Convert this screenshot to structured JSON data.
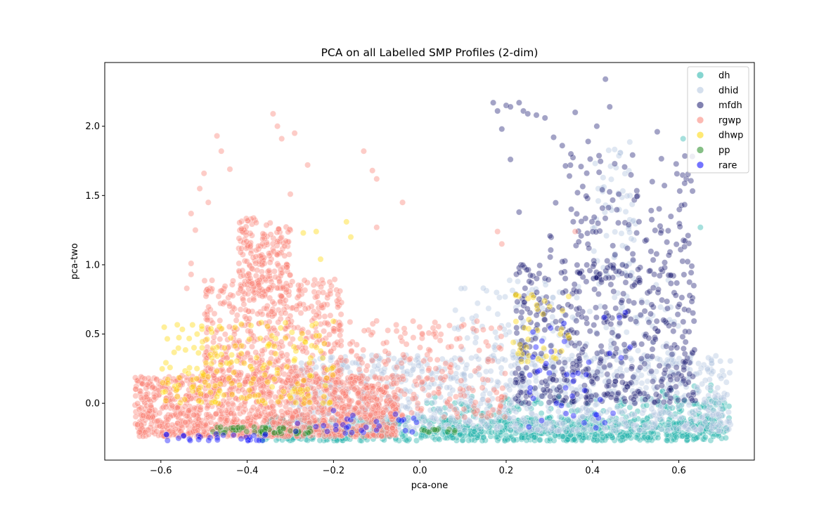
{
  "chart_data": {
    "type": "scatter",
    "title": "PCA on all Labelled SMP Profiles (2-dim)",
    "xlabel": "pca-one",
    "ylabel": "pca-two",
    "xlim": [
      -0.73,
      0.775
    ],
    "ylim": [
      -0.41,
      2.46
    ],
    "xticks": [
      -0.6,
      -0.4,
      -0.2,
      0.0,
      0.2,
      0.4,
      0.6
    ],
    "xtick_labels": [
      "−0.6",
      "−0.4",
      "−0.2",
      "0.0",
      "0.2",
      "0.4",
      "0.6"
    ],
    "yticks": [
      0.0,
      0.5,
      1.0,
      1.5,
      2.0
    ],
    "ytick_labels": [
      "0.0",
      "0.5",
      "1.0",
      "1.5",
      "2.0"
    ],
    "grid": false,
    "legend_position": "top-right",
    "series": [
      {
        "name": "dh",
        "color": "#20b2aa",
        "clusters": [
          {
            "x": [
              -0.38,
              0.7
            ],
            "y": [
              -0.27,
              -0.1
            ],
            "n": 700
          },
          {
            "x": [
              0.0,
              0.72
            ],
            "y": [
              -0.25,
              0.05
            ],
            "n": 260
          },
          {
            "x": [
              0.55,
              0.7
            ],
            "y": [
              -0.2,
              0.15
            ],
            "n": 40
          }
        ],
        "points": [
          {
            "x": 0.61,
            "y": 1.91
          },
          {
            "x": 0.65,
            "y": 1.27
          },
          {
            "x": 0.71,
            "y": -0.18
          }
        ]
      },
      {
        "name": "dhid",
        "color": "#b0c4de",
        "clusters": [
          {
            "x": [
              -0.3,
              0.72
            ],
            "y": [
              -0.2,
              0.35
            ],
            "n": 1100
          },
          {
            "x": [
              0.08,
              0.6
            ],
            "y": [
              0.3,
              0.9
            ],
            "n": 160
          },
          {
            "x": [
              0.4,
              0.5
            ],
            "y": [
              0.9,
              1.9
            ],
            "n": 70
          }
        ],
        "points": []
      },
      {
        "name": "mfdh",
        "color": "#191970",
        "clusters": [
          {
            "x": [
              0.22,
              0.64
            ],
            "y": [
              0.0,
              1.0
            ],
            "n": 480
          },
          {
            "x": [
              0.3,
              0.64
            ],
            "y": [
              0.9,
              1.8
            ],
            "n": 130
          }
        ],
        "points": [
          {
            "x": 0.17,
            "y": 2.17
          },
          {
            "x": 0.18,
            "y": 2.11
          },
          {
            "x": 0.2,
            "y": 2.15
          },
          {
            "x": 0.21,
            "y": 2.14
          },
          {
            "x": 0.23,
            "y": 2.17
          },
          {
            "x": 0.24,
            "y": 2.11
          },
          {
            "x": 0.25,
            "y": 2.09
          },
          {
            "x": 0.27,
            "y": 2.08
          },
          {
            "x": 0.29,
            "y": 2.06
          },
          {
            "x": 0.31,
            "y": 1.92
          },
          {
            "x": 0.33,
            "y": 1.86
          },
          {
            "x": 0.35,
            "y": 1.8
          },
          {
            "x": 0.39,
            "y": 1.89
          },
          {
            "x": 0.43,
            "y": 2.34
          },
          {
            "x": 0.44,
            "y": 2.14
          },
          {
            "x": 0.41,
            "y": 2.0
          },
          {
            "x": 0.19,
            "y": 1.98
          },
          {
            "x": 0.21,
            "y": 1.76
          },
          {
            "x": 0.23,
            "y": 1.38
          },
          {
            "x": 0.36,
            "y": 2.1
          },
          {
            "x": 0.55,
            "y": 1.96
          },
          {
            "x": 0.63,
            "y": 0.99
          }
        ]
      },
      {
        "name": "rgwp",
        "color": "#fa8072",
        "clusters": [
          {
            "x": [
              -0.66,
              -0.05
            ],
            "y": [
              -0.24,
              0.2
            ],
            "n": 1300
          },
          {
            "x": [
              -0.5,
              -0.18
            ],
            "y": [
              0.15,
              0.9
            ],
            "n": 520
          },
          {
            "x": [
              -0.42,
              -0.3
            ],
            "y": [
              0.8,
              1.35
            ],
            "n": 200
          },
          {
            "x": [
              -0.2,
              0.2
            ],
            "y": [
              -0.1,
              0.6
            ],
            "n": 240
          }
        ],
        "points": [
          {
            "x": -0.34,
            "y": 2.09
          },
          {
            "x": -0.33,
            "y": 2.0
          },
          {
            "x": -0.32,
            "y": 1.91
          },
          {
            "x": -0.29,
            "y": 1.95
          },
          {
            "x": -0.47,
            "y": 1.93
          },
          {
            "x": -0.46,
            "y": 1.82
          },
          {
            "x": -0.44,
            "y": 1.69
          },
          {
            "x": -0.5,
            "y": 1.66
          },
          {
            "x": -0.51,
            "y": 1.55
          },
          {
            "x": -0.49,
            "y": 1.45
          },
          {
            "x": -0.26,
            "y": 1.72
          },
          {
            "x": -0.3,
            "y": 1.51
          },
          {
            "x": -0.13,
            "y": 1.82
          },
          {
            "x": -0.11,
            "y": 1.68
          },
          {
            "x": -0.1,
            "y": 1.62
          },
          {
            "x": -0.04,
            "y": 1.45
          },
          {
            "x": -0.53,
            "y": 1.37
          },
          {
            "x": -0.52,
            "y": 1.25
          },
          {
            "x": -0.1,
            "y": 1.27
          },
          {
            "x": -0.53,
            "y": 0.93
          },
          {
            "x": 0.18,
            "y": 1.24
          },
          {
            "x": 0.19,
            "y": 1.15
          },
          {
            "x": 0.36,
            "y": 1.24
          },
          {
            "x": -0.53,
            "y": 1.01
          },
          {
            "x": -0.54,
            "y": 0.83
          }
        ]
      },
      {
        "name": "dhwp",
        "color": "#ffd700",
        "clusters": [
          {
            "x": [
              -0.6,
              -0.2
            ],
            "y": [
              0.0,
              0.6
            ],
            "n": 190
          },
          {
            "x": [
              0.2,
              0.35
            ],
            "y": [
              0.3,
              0.8
            ],
            "n": 40
          }
        ],
        "points": [
          {
            "x": -0.27,
            "y": 1.23
          },
          {
            "x": -0.24,
            "y": 1.24
          },
          {
            "x": -0.17,
            "y": 1.31
          },
          {
            "x": -0.16,
            "y": 1.2
          },
          {
            "x": -0.23,
            "y": 1.04
          }
        ]
      },
      {
        "name": "pp",
        "color": "#228b22",
        "clusters": [
          {
            "x": [
              -0.48,
              -0.25
            ],
            "y": [
              -0.22,
              -0.17
            ],
            "n": 55
          },
          {
            "x": [
              0.0,
              0.1
            ],
            "y": [
              -0.21,
              -0.18
            ],
            "n": 12
          }
        ],
        "points": []
      },
      {
        "name": "rare",
        "color": "#0000ff",
        "clusters": [
          {
            "x": [
              -0.62,
              -0.35
            ],
            "y": [
              -0.27,
              -0.22
            ],
            "n": 30
          },
          {
            "x": [
              -0.3,
              0.0
            ],
            "y": [
              -0.22,
              -0.05
            ],
            "n": 30
          },
          {
            "x": [
              0.25,
              0.5
            ],
            "y": [
              -0.2,
              0.7
            ],
            "n": 45
          }
        ],
        "points": []
      }
    ]
  }
}
